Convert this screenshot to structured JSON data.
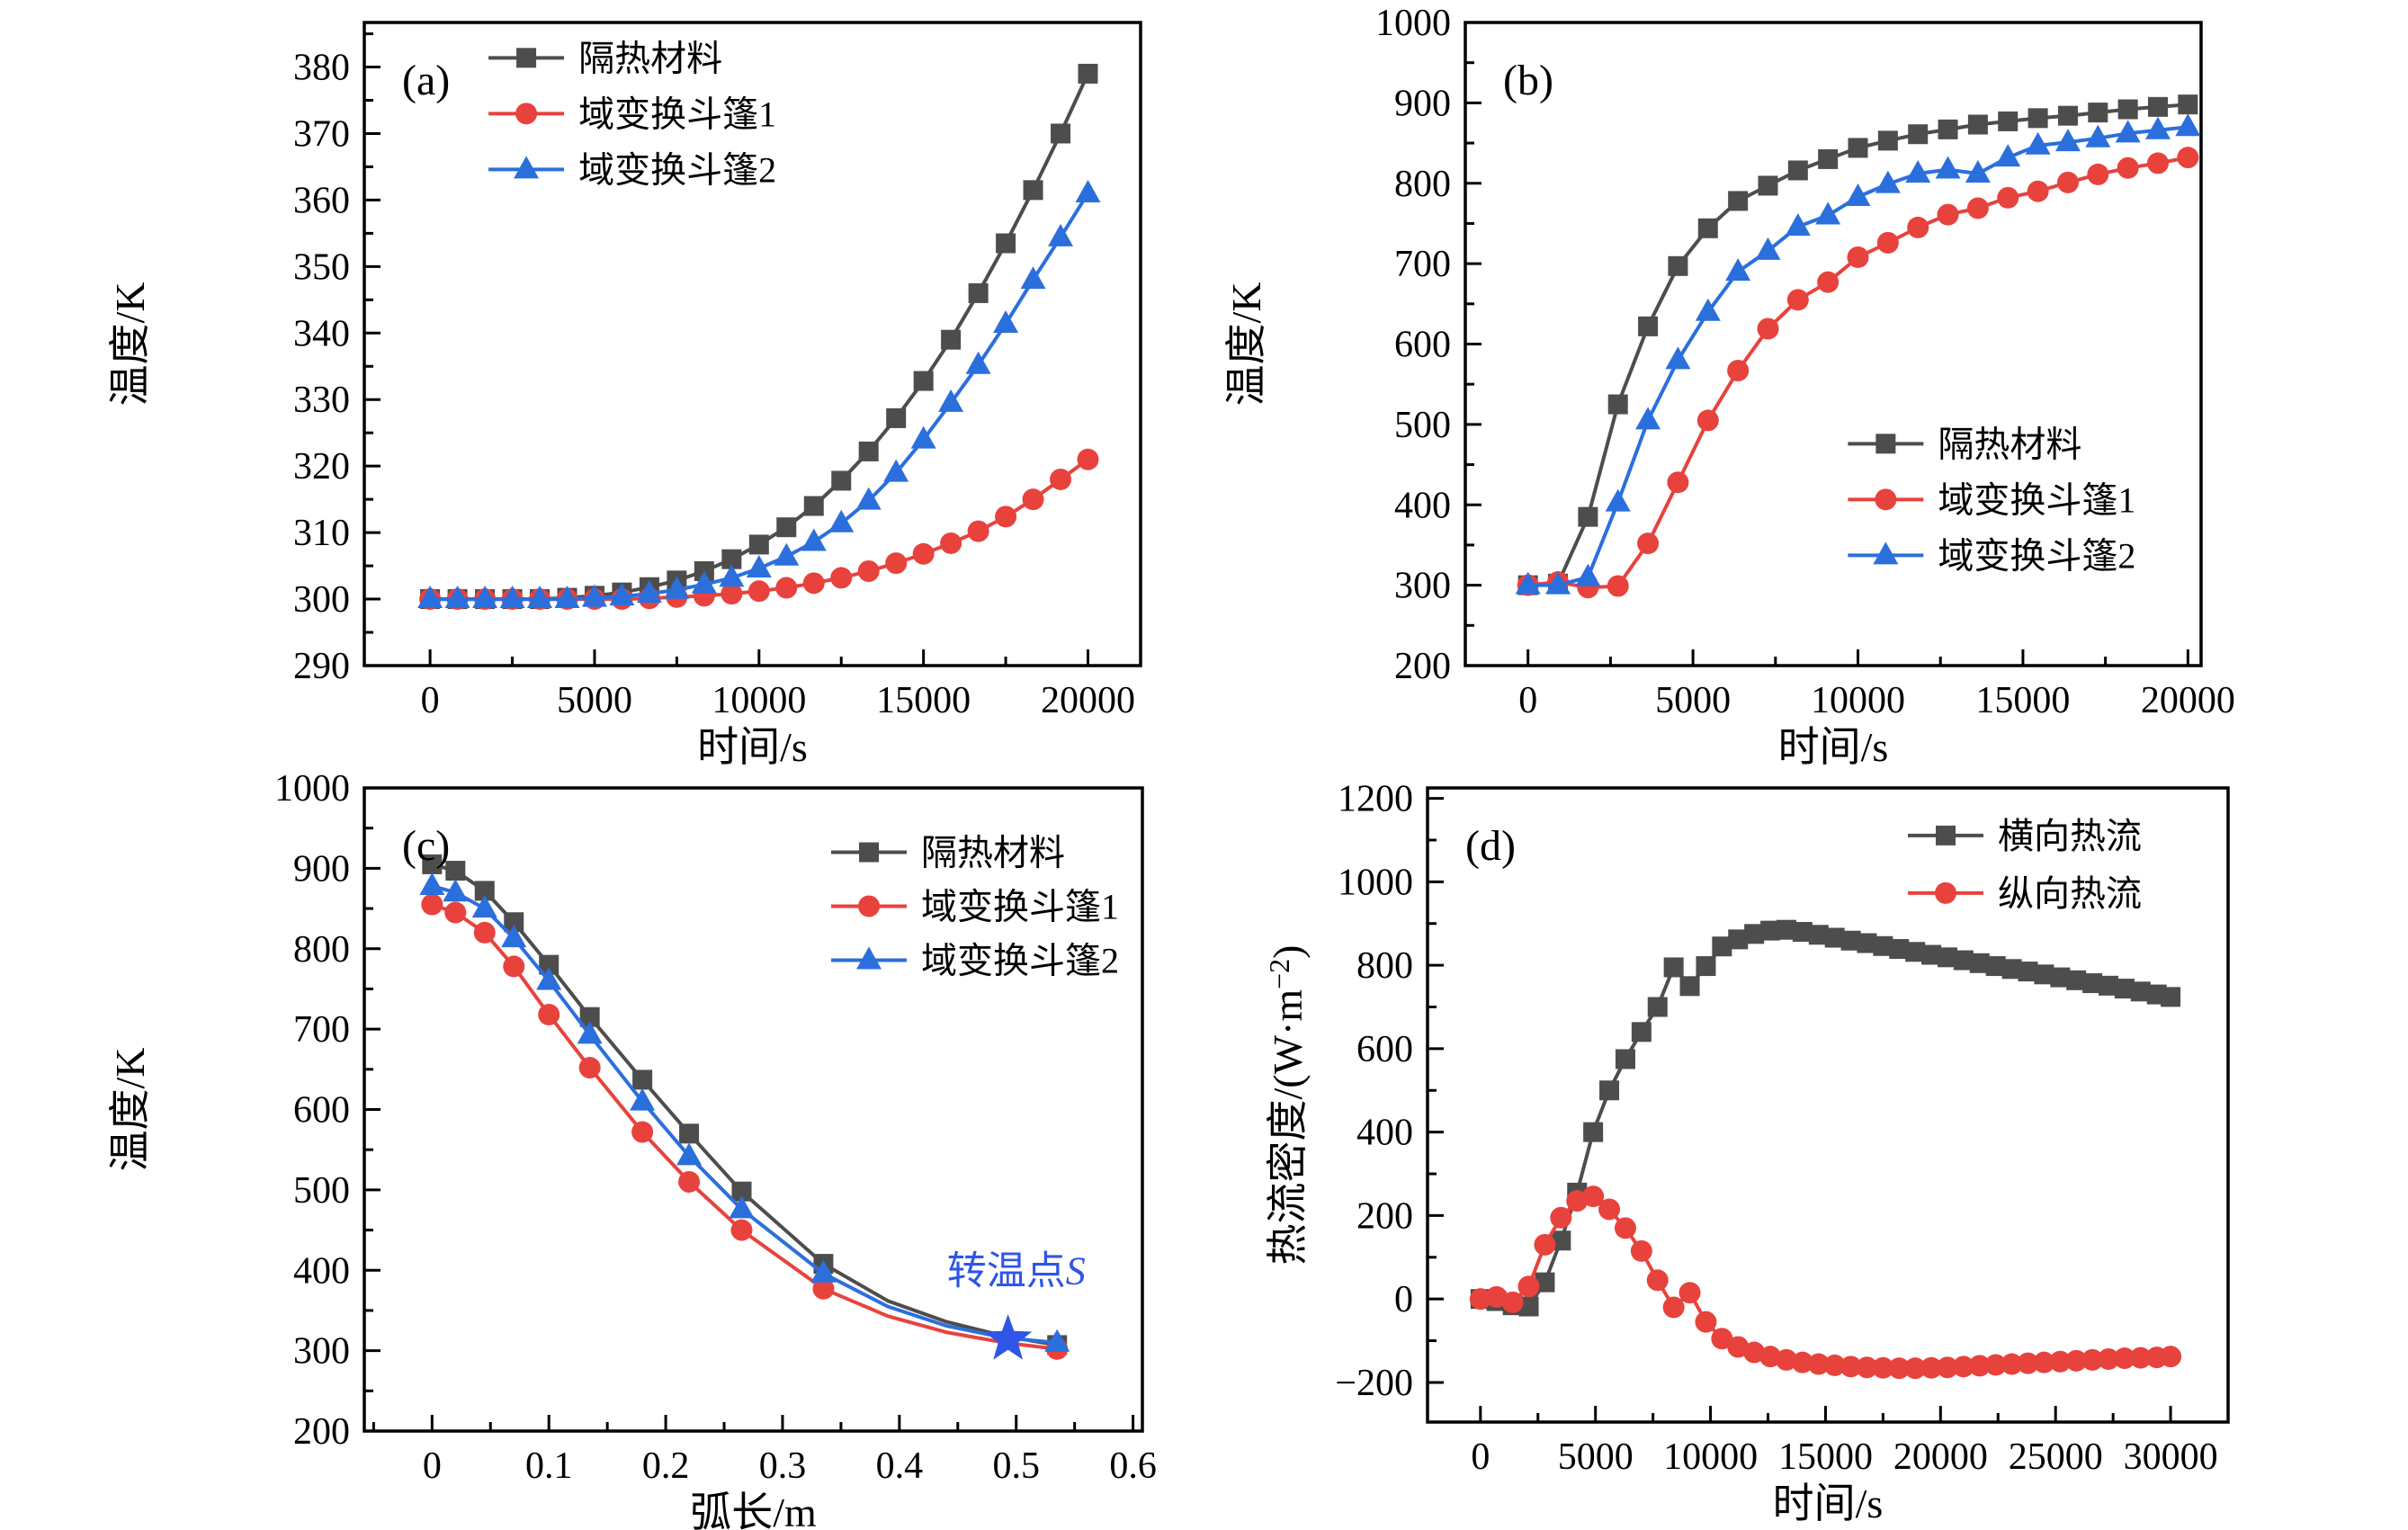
{
  "figure": {
    "background": "#ffffff",
    "panel_letters": [
      "(a)",
      "(b)",
      "(c)",
      "(d)"
    ]
  },
  "colors": {
    "insulation": "#4d4d4d",
    "cloak1": "#e8423d",
    "cloak2": "#2b6fdd",
    "annotation": "#2f55e6",
    "axis": "#000000"
  },
  "chart_data": [
    {
      "id": "a",
      "type": "line",
      "label": "(a)",
      "xlabel": "时间/s",
      "ylabel": "温度/K",
      "xlim": [
        -2000,
        21600
      ],
      "ylim": [
        290,
        386.7
      ],
      "xticks": [
        0,
        5000,
        10000,
        15000,
        20000
      ],
      "xtick_labels": [
        "0",
        "5000",
        "10000",
        "15000",
        "20000"
      ],
      "yticks": [
        290,
        300,
        310,
        320,
        330,
        340,
        350,
        360,
        370,
        380
      ],
      "ytick_labels": [
        "290",
        "300",
        "310",
        "320",
        "330",
        "340",
        "350",
        "360",
        "370",
        "380"
      ],
      "x_minor": 2500,
      "y_minor": 5,
      "margins": [
        405,
        70,
        25,
        110
      ],
      "ytitle_x": 160,
      "legend": {
        "fx": 0.16,
        "fy": 0.055,
        "row": 62,
        "position": "top-left"
      },
      "grid": false,
      "x_shared": [
        0,
        833,
        1667,
        2500,
        3333,
        4167,
        5000,
        5833,
        6667,
        7500,
        8333,
        9167,
        10000,
        10833,
        11667,
        12500,
        13333,
        14167,
        15000,
        15833,
        16667,
        17500,
        18333,
        19167,
        20000
      ],
      "series": [
        {
          "name": "隔热材料",
          "color_key": "insulation",
          "marker": "square",
          "y": [
            300,
            300,
            300,
            300,
            300,
            300.2,
            300.5,
            301,
            301.8,
            302.8,
            304.2,
            306,
            308.2,
            310.8,
            314,
            317.8,
            322.2,
            327.2,
            332.8,
            339,
            346,
            353.5,
            361.5,
            370,
            379
          ]
        },
        {
          "name": "域变换斗篷1",
          "color_key": "cloak1",
          "marker": "circle",
          "y": [
            300,
            300,
            300,
            300,
            300,
            300,
            300,
            300,
            300.1,
            300.3,
            300.5,
            300.8,
            301.2,
            301.7,
            302.4,
            303.2,
            304.2,
            305.4,
            306.8,
            308.4,
            310.2,
            312.4,
            315,
            318,
            321
          ]
        },
        {
          "name": "域变换斗篷2",
          "color_key": "cloak2",
          "marker": "triangle",
          "y": [
            300,
            300,
            300,
            300,
            300,
            300,
            300.2,
            300.4,
            300.8,
            301.4,
            302.2,
            303.2,
            304.6,
            306.4,
            308.6,
            311.4,
            314.8,
            319,
            324,
            329.5,
            335.2,
            341.4,
            348,
            354.4,
            361
          ]
        }
      ]
    },
    {
      "id": "b",
      "type": "line",
      "label": "(b)",
      "xlabel": "时间/s",
      "ylabel": "温度/K",
      "xlim": [
        -1900,
        20400
      ],
      "ylim": [
        200,
        1000
      ],
      "xticks": [
        0,
        5000,
        10000,
        15000,
        20000
      ],
      "xtick_labels": [
        "0",
        "5000",
        "10000",
        "15000",
        "20000"
      ],
      "yticks": [
        200,
        300,
        400,
        500,
        600,
        700,
        800,
        900,
        1000
      ],
      "ytick_labels": [
        "200",
        "300",
        "400",
        "500",
        "600",
        "700",
        "800",
        "900",
        "1000"
      ],
      "x_minor": 2500,
      "y_minor": 50,
      "margins": [
        290,
        230,
        25,
        110
      ],
      "ytitle_x": 62,
      "legend": {
        "fx": 0.52,
        "fy": 0.655,
        "row": 62,
        "position": "right-lower"
      },
      "grid": false,
      "x_shared": [
        0,
        909,
        1818,
        2727,
        3636,
        4545,
        5455,
        6364,
        7273,
        8182,
        9091,
        10000,
        10909,
        11818,
        12727,
        13636,
        14545,
        15455,
        16364,
        17273,
        18182,
        19091,
        20000
      ],
      "series": [
        {
          "name": "隔热材料",
          "color_key": "insulation",
          "marker": "square",
          "y": [
            300,
            302,
            385,
            525,
            622,
            697,
            744,
            778,
            797,
            816,
            830,
            844,
            853,
            861,
            867,
            873,
            877,
            881,
            884,
            888,
            892,
            895,
            898
          ]
        },
        {
          "name": "域变换斗篷1",
          "color_key": "cloak1",
          "marker": "circle",
          "y": [
            300,
            304,
            297,
            299,
            352,
            428,
            505,
            567,
            619,
            655,
            677,
            708,
            726,
            745,
            761,
            769,
            782,
            790,
            801,
            811,
            819,
            825,
            832
          ]
        },
        {
          "name": "域变换斗篷2",
          "color_key": "cloak2",
          "marker": "triangle",
          "y": [
            300,
            300,
            310,
            403,
            505,
            580,
            640,
            690,
            716,
            746,
            760,
            783,
            799,
            812,
            817,
            812,
            832,
            847,
            851,
            856,
            862,
            866,
            870
          ]
        }
      ]
    },
    {
      "id": "c",
      "type": "line",
      "label": "(c)",
      "xlabel": "弧长/m",
      "ylabel": "温度/K",
      "xlim": [
        -0.058,
        0.608
      ],
      "ylim": [
        200,
        1000
      ],
      "xticks": [
        0,
        0.1,
        0.2,
        0.3,
        0.4,
        0.5,
        0.6
      ],
      "xtick_labels": [
        "0",
        "0.1",
        "0.2",
        "0.3",
        "0.4",
        "0.5",
        "0.6"
      ],
      "yticks": [
        200,
        300,
        400,
        500,
        600,
        700,
        800,
        900,
        1000
      ],
      "ytick_labels": [
        "200",
        "300",
        "400",
        "500",
        "600",
        "700",
        "800",
        "900",
        "1000"
      ],
      "x_minor": 0.05,
      "y_minor": 50,
      "margins": [
        405,
        68,
        25,
        110
      ],
      "ytitle_x": 160,
      "legend": {
        "fx": 0.6,
        "fy": 0.1,
        "row": 60,
        "position": "top-right"
      },
      "grid": false,
      "marker_idx": [
        0,
        1,
        2,
        3,
        4,
        5,
        6,
        7,
        8,
        9,
        13
      ],
      "x_shared": [
        0,
        0.02,
        0.045,
        0.07,
        0.1,
        0.135,
        0.18,
        0.22,
        0.265,
        0.335,
        0.39,
        0.44,
        0.49,
        0.535
      ],
      "annotation": {
        "text": "转温点S",
        "text_x": 0.5,
        "text_y": 383,
        "star_x": 0.493,
        "star_y": 314
      },
      "series": [
        {
          "name": "隔热材料",
          "color_key": "insulation",
          "marker": "square",
          "y": [
            905,
            897,
            872,
            833,
            780,
            715,
            637,
            570,
            498,
            408,
            362,
            336,
            318,
            307
          ]
        },
        {
          "name": "域变换斗篷1",
          "color_key": "cloak1",
          "marker": "circle",
          "y": [
            855,
            845,
            820,
            778,
            718,
            652,
            572,
            510,
            450,
            377,
            343,
            323,
            310,
            302
          ]
        },
        {
          "name": "域变换斗篷2",
          "color_key": "cloak2",
          "marker": "triangle",
          "y": [
            878,
            870,
            850,
            813,
            760,
            693,
            610,
            542,
            476,
            396,
            355,
            331,
            316,
            310
          ]
        }
      ]
    },
    {
      "id": "d",
      "type": "line",
      "label": "(d)",
      "xlabel": "时间/s",
      "ylabel": "热流密度/(W·m⁻²)",
      "xlim": [
        -2300,
        32500
      ],
      "ylim": [
        -295,
        1225
      ],
      "xticks": [
        0,
        5000,
        10000,
        15000,
        20000,
        25000,
        30000
      ],
      "xtick_labels": [
        "0",
        "5000",
        "10000",
        "15000",
        "20000",
        "25000",
        "30000"
      ],
      "yticks": [
        -200,
        0,
        200,
        400,
        600,
        800,
        1000,
        1200
      ],
      "ytick_labels": [
        "−200",
        "0",
        "200",
        "400",
        "600",
        "800",
        "1000",
        "1200"
      ],
      "x_minor": 2500,
      "y_minor": 100,
      "margins": [
        248,
        200,
        25,
        120
      ],
      "ytitle_x": 108,
      "legend": {
        "fx": 0.6,
        "fy": 0.075,
        "row": 64,
        "position": "top-right"
      },
      "grid": false,
      "x_shared": [
        0,
        700,
        1400,
        2100,
        2800,
        3500,
        4200,
        4900,
        5600,
        6300,
        7000,
        7700,
        8400,
        9100,
        9800,
        10500,
        11200,
        11900,
        12600,
        13300,
        14000,
        14700,
        15400,
        16100,
        16800,
        17500,
        18200,
        18900,
        19600,
        20300,
        21000,
        21700,
        22400,
        23100,
        23800,
        24500,
        25200,
        25900,
        26600,
        27300,
        28000,
        28700,
        29400,
        30000
      ],
      "series": [
        {
          "name": "横向热流",
          "color_key": "insulation",
          "marker": "square",
          "y": [
            0,
            -5,
            -15,
            -18,
            40,
            140,
            255,
            400,
            500,
            575,
            640,
            700,
            795,
            750,
            798,
            845,
            862,
            875,
            883,
            885,
            880,
            873,
            866,
            859,
            853,
            846,
            839,
            832,
            825,
            819,
            812,
            805,
            798,
            791,
            785,
            778,
            771,
            764,
            757,
            751,
            744,
            737,
            730,
            724
          ]
        },
        {
          "name": "纵向热流",
          "color_key": "cloak1",
          "marker": "circle",
          "y": [
            0,
            5,
            -8,
            30,
            130,
            195,
            235,
            246,
            215,
            170,
            115,
            45,
            -20,
            15,
            -55,
            -95,
            -115,
            -128,
            -138,
            -146,
            -152,
            -156,
            -159,
            -162,
            -164,
            -165,
            -166,
            -166,
            -165,
            -164,
            -162,
            -160,
            -158,
            -156,
            -154,
            -152,
            -150,
            -148,
            -146,
            -144,
            -142,
            -141,
            -140,
            -138
          ]
        }
      ]
    }
  ]
}
